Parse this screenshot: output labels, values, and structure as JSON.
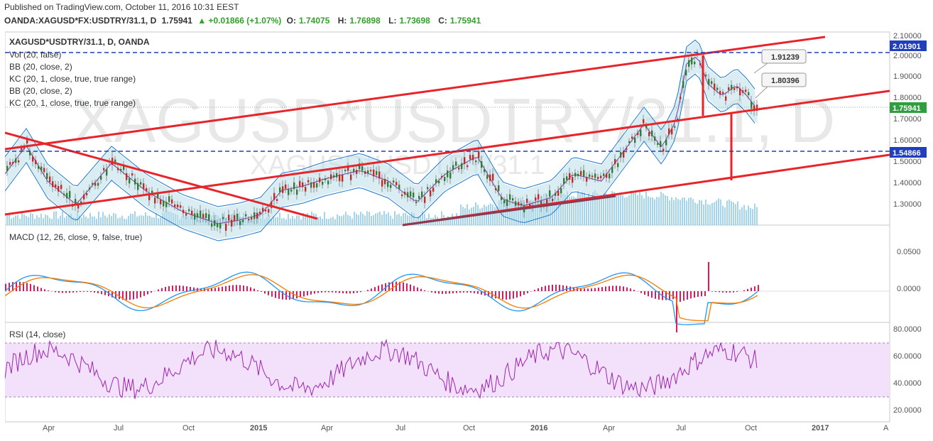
{
  "published": "Published on TradingView.com, October 11, 2016 10:31 EEST",
  "header": {
    "symbol": "OANDA:XAGUSD*FX:USDTRY/31.1, D",
    "last": "1.75941",
    "change": "▲ +0.01866 (+1.07%)",
    "o_label": "O:",
    "o_value": "1.74075",
    "h_label": "H:",
    "h_value": "1.76898",
    "l_label": "L:",
    "l_value": "1.73698",
    "c_label": "C:",
    "c_value": "1.75941"
  },
  "price_pane": {
    "title": "XAGUSD*USDTRY/31.1, D, OANDA",
    "indicators": [
      "Vol (20, false)",
      "BB (20, close, 2)",
      "KC (20, 1, close, true, true range)",
      "BB (20, close, 2)",
      "KC (20, 1, close, true, true range)"
    ],
    "watermark_main": "XAGUSD*USDTRY/31.1, D",
    "watermark_sub": "XAGUSD*USDTRY/31.1",
    "y_ticks": [
      "2.10000",
      "2.00000",
      "1.90000",
      "1.80000",
      "1.70000",
      "1.60000",
      "1.50000",
      "1.40000",
      "1.30000"
    ],
    "price_tags": [
      {
        "label": "2.01901",
        "color": "#1f3fbf"
      },
      {
        "label": "1.75941",
        "color": "#2e9e3e"
      },
      {
        "label": "1.54866",
        "color": "#1f3fbf"
      }
    ],
    "callouts": [
      "1.91239",
      "1.80396"
    ]
  },
  "macd_pane": {
    "title": "MACD (12, 26, close, 9, false, true)",
    "y_ticks": [
      "0.0500",
      "0.0000"
    ]
  },
  "rsi_pane": {
    "title": "RSI (14, close)",
    "y_ticks": [
      "80.0000",
      "60.0000",
      "40.0000",
      "20.0000"
    ]
  },
  "x_axis": {
    "labels": [
      "Apr",
      "Jul",
      "Oct",
      "2015",
      "Apr",
      "Jul",
      "Oct",
      "2016",
      "Apr",
      "Jul",
      "Oct",
      "2017",
      "A"
    ],
    "bold": [
      "2015",
      "2016",
      "2017"
    ]
  },
  "colors": {
    "trendline": "#e8242b",
    "support_line": "#8b3a52",
    "hline": "#1f3fbf",
    "bb_fill": "#b9dfe8",
    "volume": "#8ecbe6",
    "macd": "#2196f3",
    "signal": "#f57c00",
    "hist": "#d81b60",
    "rsi": "#9c27b0",
    "rsi_band": "#f3e0fa"
  },
  "chart_data": {
    "type": "line",
    "series": [],
    "ylim": [
      1.22,
      2.12
    ],
    "x_range": [
      "2014-01",
      "2017-04"
    ]
  }
}
